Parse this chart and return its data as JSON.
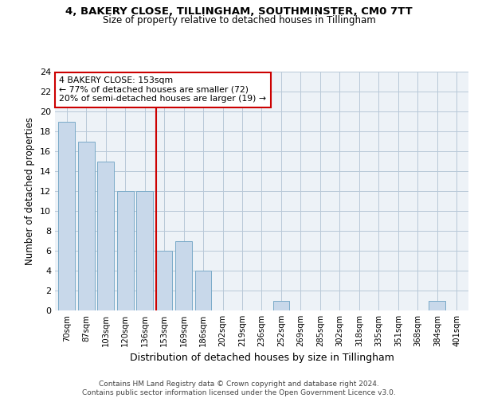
{
  "title1": "4, BAKERY CLOSE, TILLINGHAM, SOUTHMINSTER, CM0 7TT",
  "title2": "Size of property relative to detached houses in Tillingham",
  "xlabel": "Distribution of detached houses by size in Tillingham",
  "ylabel": "Number of detached properties",
  "bar_labels": [
    "70sqm",
    "87sqm",
    "103sqm",
    "120sqm",
    "136sqm",
    "153sqm",
    "169sqm",
    "186sqm",
    "202sqm",
    "219sqm",
    "236sqm",
    "252sqm",
    "269sqm",
    "285sqm",
    "302sqm",
    "318sqm",
    "335sqm",
    "351sqm",
    "368sqm",
    "384sqm",
    "401sqm"
  ],
  "bar_values": [
    19,
    17,
    15,
    12,
    12,
    6,
    7,
    4,
    0,
    0,
    0,
    1,
    0,
    0,
    0,
    0,
    0,
    0,
    0,
    1,
    0
  ],
  "bar_color": "#c8d8ea",
  "bar_edgecolor": "#7aaac8",
  "highlight_line_index": 5,
  "highlight_line_color": "#cc0000",
  "annotation_text": "4 BAKERY CLOSE: 153sqm\n← 77% of detached houses are smaller (72)\n20% of semi-detached houses are larger (19) →",
  "annotation_box_color": "#ffffff",
  "annotation_box_edge": "#cc0000",
  "ylim": [
    0,
    24
  ],
  "yticks": [
    0,
    2,
    4,
    6,
    8,
    10,
    12,
    14,
    16,
    18,
    20,
    22,
    24
  ],
  "background_color": "#edf2f7",
  "footer1": "Contains HM Land Registry data © Crown copyright and database right 2024.",
  "footer2": "Contains public sector information licensed under the Open Government Licence v3.0."
}
